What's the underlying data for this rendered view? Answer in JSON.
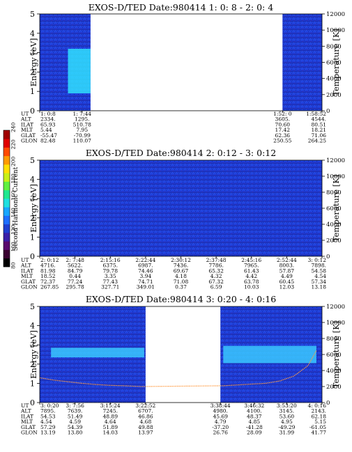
{
  "colorbar": {
    "label": "Second Harmonic Current",
    "ticks": [
      "80",
      "100",
      "120",
      "140",
      "160",
      "180",
      "200",
      "220",
      "240"
    ],
    "colors": [
      "#000000",
      "#3a0030",
      "#5a0a6e",
      "#3a1fa8",
      "#1f3fd0",
      "#1e6fff",
      "#19a6ff",
      "#1fe0e0",
      "#20e890",
      "#60f040",
      "#c8f018",
      "#ffe000",
      "#ff9a00",
      "#ff4a00",
      "#e00000",
      "#a00000"
    ]
  },
  "chart_data": [
    {
      "type": "heatmap",
      "title": "EXOS-D/TED   Date:980414  1: 0: 8 - 2: 0: 4",
      "ylabel": "Energy [eV]",
      "y2label": "Temperature [K]",
      "ylim": [
        0,
        5
      ],
      "y2lim": [
        0,
        12000
      ],
      "yticks": [
        "0",
        "1",
        "2",
        "3",
        "4",
        "5"
      ],
      "y2ticks": [
        "0",
        "2000",
        "4000",
        "6000",
        "8000",
        "10000",
        "12000"
      ],
      "gaps": [
        [
          0.18,
          0.86
        ]
      ],
      "features": [
        {
          "kind": "band",
          "x0": 0.1,
          "x1": 0.18,
          "e0": 0.9,
          "e1": 3.2,
          "color": "#30e0ff"
        }
      ],
      "ephem_labels": [
        "UT",
        "ALT",
        "ILAT",
        "MLT",
        "GLAT",
        "GLON"
      ],
      "ephem": [
        {
          "pos": 0.0,
          "values": [
            "1: 0:8",
            "2334.",
            "65.93",
            "5.44",
            "-55.47",
            "82.48"
          ]
        },
        {
          "pos": 0.15,
          "values": [
            "1: 7:44",
            "1295.",
            "510.78",
            "7.95",
            "-70.99",
            "110.07"
          ]
        },
        {
          "pos": 0.86,
          "values": [
            "1:52: 0",
            "3605.",
            "70.60",
            "17.42",
            "62.36",
            "250.55"
          ]
        },
        {
          "pos": 1.0,
          "values": [
            "1:58:52",
            "4544.",
            "80.51",
            "18.21",
            "71.06",
            "264.25"
          ]
        }
      ]
    },
    {
      "type": "heatmap",
      "title": "EXOS-D/TED   Date:980414  2: 0:12 - 3: 0:12",
      "ylabel": "Energy [eV]",
      "y2label": "Temperature [K]",
      "ylim": [
        0,
        5
      ],
      "y2lim": [
        0,
        12000
      ],
      "yticks": [
        "0",
        "1",
        "2",
        "3",
        "4",
        "5"
      ],
      "y2ticks": [
        "0",
        "2000",
        "4000",
        "6000",
        "8000",
        "10000",
        "12000"
      ],
      "gaps": [],
      "features": [],
      "ephem_labels": [
        "UT",
        "ALT",
        "ILAT",
        "MLT",
        "GLAT",
        "GLON"
      ],
      "ephem": [
        {
          "pos": 0.0,
          "values": [
            "2: 0:12",
            "4716.",
            "81.98",
            "18.52",
            "72.37",
            "267.85"
          ]
        },
        {
          "pos": 0.125,
          "values": [
            "2: 7:48",
            "5622.",
            "84.79",
            "0.44",
            "77.24",
            "295.78"
          ]
        },
        {
          "pos": 0.25,
          "values": [
            "2:15:16",
            "6375.",
            "79.78",
            "3.35",
            "77.43",
            "327.71"
          ]
        },
        {
          "pos": 0.375,
          "values": [
            "2:22:44",
            "6987.",
            "74.46",
            "3.94",
            "74.71",
            "349.01"
          ]
        },
        {
          "pos": 0.5,
          "values": [
            "2:30:12",
            "7436.",
            "69.67",
            "4.18",
            "71.08",
            "0.37"
          ]
        },
        {
          "pos": 0.625,
          "values": [
            "2:37:48",
            "7786.",
            "65.32",
            "4.32",
            "67.32",
            "6.59"
          ]
        },
        {
          "pos": 0.75,
          "values": [
            "2:45:16",
            "7965.",
            "61.43",
            "4.42",
            "63.78",
            "10.03"
          ]
        },
        {
          "pos": 0.875,
          "values": [
            "2:52:44",
            "8003.",
            "57.87",
            "4.49",
            "60.45",
            "12.03"
          ]
        },
        {
          "pos": 1.0,
          "values": [
            "3: 0:12",
            "7898.",
            "54.58",
            "4.54",
            "57.34",
            "13.18"
          ]
        }
      ]
    },
    {
      "type": "heatmap",
      "title": "EXOS-D/TED   Date:980414  3: 0:20 - 4: 0:16",
      "ylabel": "Energy [eV]",
      "y2label": "Temperature [K]",
      "ylim": [
        0,
        5
      ],
      "y2lim": [
        0,
        12000
      ],
      "yticks": [
        "0",
        "1",
        "2",
        "3",
        "4",
        "5"
      ],
      "y2ticks": [
        "0",
        "2000",
        "4000",
        "6000",
        "8000",
        "10000",
        "12000"
      ],
      "gaps": [
        [
          0.375,
          0.64
        ]
      ],
      "features": [
        {
          "kind": "band",
          "x0": 0.04,
          "x1": 0.37,
          "e0": 2.35,
          "e1": 2.85,
          "color": "#3ac8ff"
        },
        {
          "kind": "band",
          "x0": 0.65,
          "x1": 0.98,
          "e0": 2.05,
          "e1": 2.95,
          "color": "#3ac8ff"
        }
      ],
      "temperature_trace": [
        [
          0.0,
          3100
        ],
        [
          0.05,
          2800
        ],
        [
          0.1,
          2600
        ],
        [
          0.15,
          2400
        ],
        [
          0.2,
          2250
        ],
        [
          0.25,
          2150
        ],
        [
          0.3,
          2100
        ],
        [
          0.36,
          2000
        ],
        [
          0.65,
          2100
        ],
        [
          0.7,
          2200
        ],
        [
          0.75,
          2300
        ],
        [
          0.8,
          2400
        ],
        [
          0.85,
          2700
        ],
        [
          0.9,
          3300
        ],
        [
          0.95,
          4600
        ],
        [
          0.98,
          6500
        ]
      ],
      "ephem_labels": [
        "UT",
        "ALT",
        "ILAT",
        "MLT",
        "GLAT",
        "GLON"
      ],
      "ephem": [
        {
          "pos": 0.0,
          "values": [
            "3: 0:20",
            "7895.",
            "54.53",
            "4.54",
            "57.29",
            "13.19"
          ]
        },
        {
          "pos": 0.125,
          "values": [
            "3: 7:56",
            "7639.",
            "51.49",
            "4.59",
            "54.39",
            "13.80"
          ]
        },
        {
          "pos": 0.25,
          "values": [
            "3:15:24",
            "7245.",
            "48.89",
            "4.64",
            "51.89",
            "14.03"
          ]
        },
        {
          "pos": 0.375,
          "values": [
            "3:22:52",
            "6707.",
            "46.86",
            "4.68",
            "49.88",
            "13.97"
          ]
        },
        {
          "pos": 0.64,
          "values": [
            "3:38:44",
            "4980.",
            "45.69",
            "4.79",
            "-37.20",
            "26.76"
          ]
        },
        {
          "pos": 0.76,
          "values": [
            "3:46:32",
            "4100.",
            "48.37",
            "4.85",
            "-41.28",
            "28.09"
          ]
        },
        {
          "pos": 0.875,
          "values": [
            "3:53:20",
            "3145.",
            "53.60",
            "4.95",
            "-49.29",
            "31.99"
          ]
        },
        {
          "pos": 1.0,
          "values": [
            "4: 0:16",
            "2143.",
            "62.18",
            "5.15",
            "-61.05",
            "41.77"
          ]
        }
      ]
    }
  ]
}
